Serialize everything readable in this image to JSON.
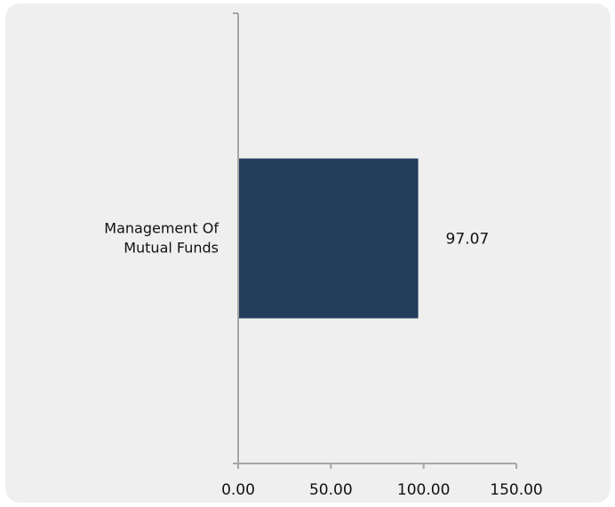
{
  "chart_data": {
    "type": "bar",
    "orientation": "horizontal",
    "categories": [
      "Management Of Mutual Funds"
    ],
    "category_label_lines": [
      [
        "Management Of",
        "Mutual Funds"
      ]
    ],
    "values": [
      97.07
    ],
    "data_labels": [
      "97.07"
    ],
    "title": "",
    "xlabel": "",
    "ylabel": "",
    "xlim": [
      0,
      150
    ],
    "x_ticks": [
      0,
      50,
      100,
      150
    ],
    "x_tick_labels": [
      "0.00",
      "50.00",
      "100.00",
      "150.00"
    ],
    "grid": false,
    "legend": "none",
    "colors": {
      "bar": "#243d5c",
      "axis": "#a6a6a6",
      "background": "#efefef",
      "text": "#111111"
    }
  }
}
